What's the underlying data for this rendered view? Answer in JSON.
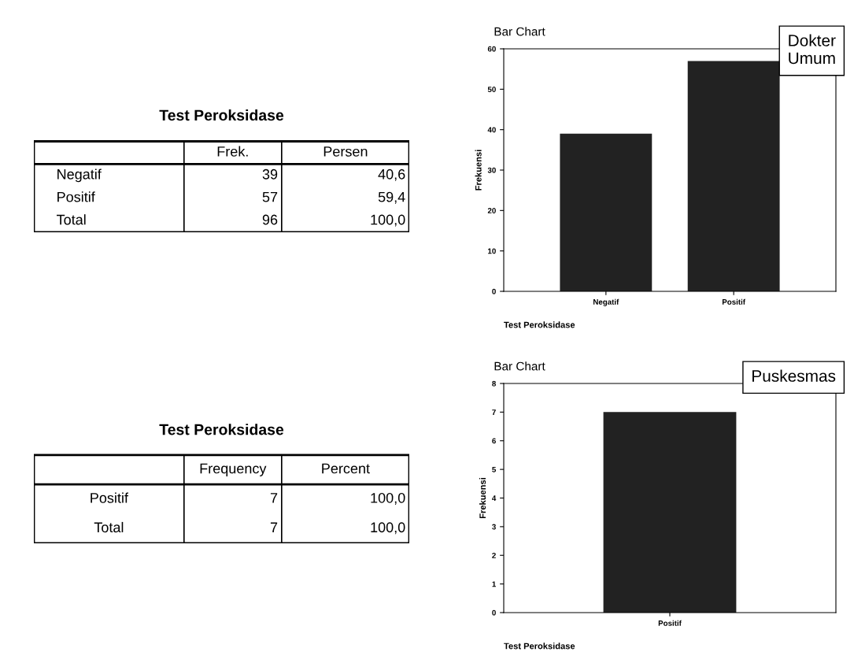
{
  "chart_data": [
    {
      "type": "other",
      "title": "Test Peroksidase",
      "categories": [
        null,
        "Frek.",
        "Persen"
      ],
      "y_categories": [
        "Negatif",
        "Positif",
        "Total"
      ],
      "cell_labels": [
        [
          "39",
          "40,6"
        ],
        [
          "57",
          "59,4"
        ],
        [
          "96",
          "100,0"
        ]
      ]
    },
    {
      "type": "bar",
      "title": "Bar Chart",
      "xlabel": "Test Peroksidase",
      "ylabel": "Frekuensi",
      "categories": [
        "Negatif",
        "Positif"
      ],
      "values": [
        39,
        57
      ],
      "color": "#222222",
      "ylim": [
        0,
        60
      ],
      "yticks": [
        0,
        10,
        20,
        30,
        40,
        50,
        60
      ],
      "annotations": [
        "Dokter\nUmum"
      ]
    },
    {
      "type": "other",
      "title": "Test Peroksidase",
      "categories": [
        null,
        "Frequency",
        "Percent"
      ],
      "y_categories": [
        "Positif",
        "Total"
      ],
      "cell_labels": [
        [
          "7",
          "100,0"
        ],
        [
          "7",
          "100,0"
        ]
      ]
    },
    {
      "type": "bar",
      "title": "Bar Chart",
      "xlabel": "Test Peroksidase",
      "ylabel": "Frekuensi",
      "categories": [
        "Positif"
      ],
      "values": [
        7
      ],
      "color": "#222222",
      "ylim": [
        0,
        8
      ],
      "yticks": [
        0,
        1,
        2,
        3,
        4,
        5,
        6,
        7,
        8
      ],
      "annotations": [
        "Puskesmas"
      ]
    }
  ]
}
